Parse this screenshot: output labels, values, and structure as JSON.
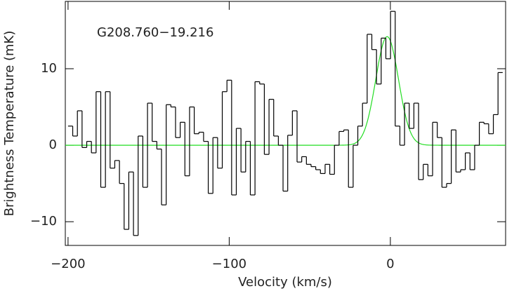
{
  "chart_data": {
    "type": "histogram",
    "annotation": "G208.760−19.216",
    "xlabel": "Velocity (km/s)",
    "ylabel": "Brightness Temperature (mK)",
    "bins": [
      -200,
      -197.1,
      -194.2,
      -191.3,
      -188.4,
      -185.5,
      -182.6,
      -179.7,
      -176.8,
      -173.9,
      -171,
      -168.1,
      -165.2,
      -162.3,
      -159.4,
      -156.5,
      -153.6,
      -150.7,
      -147.8,
      -144.9,
      -142,
      -139.1,
      -136.2,
      -133.3,
      -130.4,
      -127.5,
      -124.6,
      -121.7,
      -118.8,
      -115.9,
      -113,
      -110.1,
      -107.2,
      -104.3,
      -101.4,
      -98.5,
      -95.6,
      -92.7,
      -89.8,
      -86.9,
      -84,
      -81.1,
      -78.2,
      -75.3,
      -72.4,
      -69.5,
      -66.6,
      -63.7,
      -60.8,
      -57.9,
      -55,
      -52.1,
      -49.2,
      -46.3,
      -43.4,
      -40.5,
      -37.6,
      -34.7,
      -31.8,
      -28.9,
      -26,
      -23.1,
      -20.2,
      -17.3,
      -14.4,
      -11.5,
      -8.6,
      -5.7,
      -2.8,
      0.1,
      3,
      5.9,
      8.8,
      11.7,
      14.6,
      17.5,
      20.4,
      23.3,
      26.2,
      29.1,
      32,
      34.9,
      37.8,
      40.7,
      43.6,
      46.5,
      49.4,
      52.3,
      55.2,
      58.1,
      61,
      63.9,
      66.8,
      69.7
    ],
    "values": [
      2.5,
      1.2,
      4.5,
      -0.3,
      0.5,
      -1,
      7,
      -5.5,
      7,
      -3,
      -2,
      -5,
      -11,
      -3.5,
      -11.8,
      1.2,
      -5.5,
      5.5,
      0.5,
      -0.5,
      -7.8,
      5.3,
      5,
      1,
      3,
      -4,
      5,
      1.5,
      1.7,
      0.5,
      -6.3,
      1,
      -3,
      7,
      8.5,
      -6.5,
      2.2,
      -3.5,
      0.5,
      -6.5,
      8.3,
      8,
      -1.2,
      6,
      1.2,
      0,
      -6,
      1.3,
      4.5,
      -2.2,
      -1.5,
      -2.5,
      -2.8,
      -3.2,
      -3.7,
      -2.5,
      -3.8,
      0,
      1.8,
      2,
      -5.5,
      0,
      2.5,
      5.5,
      14.5,
      12.5,
      8,
      14,
      11.3,
      17.5,
      2.5,
      0,
      5.5,
      2.2,
      5.5,
      -4.5,
      -2.5,
      -4,
      3,
      1,
      -5.5,
      -5,
      2,
      -3.5,
      -3.2,
      -1,
      -3.2,
      0,
      3,
      2.8,
      1.5,
      4,
      9.5
    ],
    "color": "#000000",
    "fit": {
      "amplitude": 14.2,
      "center": -2,
      "fwhm": 16.6,
      "color": "#22dd22"
    },
    "xlim": [
      -201.7,
      71.5
    ],
    "ylim": [
      -13.1,
      18.8
    ],
    "xticks": [
      {
        "value": -200,
        "label": "−200"
      },
      {
        "value": -100,
        "label": "−100"
      },
      0
    ],
    "yticks": [
      {
        "value": -10,
        "label": "−10"
      },
      0,
      10
    ]
  }
}
